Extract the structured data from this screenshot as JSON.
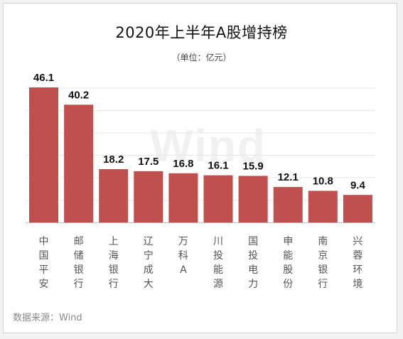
{
  "watermark": "Wind",
  "source": "数据来源：Wind",
  "colors": {
    "bar": "#c0504d",
    "grid": "#e7e7e7",
    "axis": "#bfbfbf"
  },
  "chart_data": {
    "type": "bar",
    "title": "2020年上半年A股增持榜",
    "subtitle": "（单位：亿元）",
    "categories": [
      "中国平安",
      "邮储银行",
      "上海银行",
      "辽宁成大",
      "万科A",
      "川投能源",
      "国投电力",
      "申能股份",
      "南京银行",
      "兴蓉环境"
    ],
    "values": [
      46.1,
      40.2,
      18.2,
      17.5,
      16.8,
      16.1,
      15.9,
      12.1,
      10.8,
      9.4
    ],
    "data_labels": [
      "46.1",
      "40.2",
      "18.2",
      "17.5",
      "16.8",
      "16.1",
      "15.9",
      "12.1",
      "10.8",
      "9.4"
    ],
    "ylim": [
      0,
      46.1
    ],
    "grid": true,
    "legend": "none"
  }
}
